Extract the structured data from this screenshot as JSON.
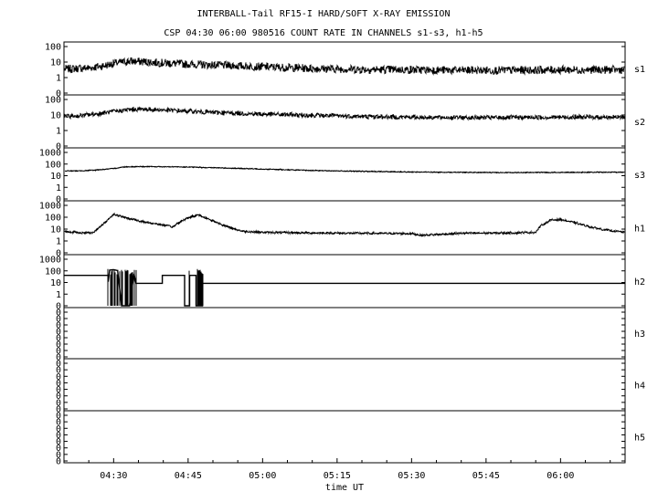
{
  "title": "INTERBALL-Tail RF15-I HARD/SOFT X-RAY EMISSION",
  "subtitle": "CSP 04:30 06:00 980516  COUNT RATE IN CHANNELS s1-s3, h1-h5",
  "chart_data": {
    "type": "line",
    "x_axis": {
      "label": "time UT",
      "range_minutes": [
        260,
        373
      ],
      "ticks": [
        {
          "label": "04:30",
          "minutes": 270
        },
        {
          "label": "04:45",
          "minutes": 285
        },
        {
          "label": "05:00",
          "minutes": 300
        },
        {
          "label": "05:15",
          "minutes": 315
        },
        {
          "label": "05:30",
          "minutes": 330
        },
        {
          "label": "05:45",
          "minutes": 345
        },
        {
          "label": "06:00",
          "minutes": 360
        }
      ]
    },
    "y_scale": "log",
    "grid": false,
    "series": [
      {
        "name": "s1",
        "ytick_labels": [
          "100",
          "10",
          "1",
          "0"
        ],
        "ylim": [
          0.3,
          100
        ],
        "x": [
          260,
          265,
          268,
          270,
          273,
          276,
          280,
          285,
          290,
          295,
          300,
          310,
          320,
          330,
          340,
          350,
          360,
          373
        ],
        "values": [
          6,
          7,
          9,
          12,
          16,
          15,
          13,
          11,
          10,
          9,
          8,
          6.5,
          5.8,
          5.5,
          5.2,
          5.2,
          5.5,
          5.5
        ]
      },
      {
        "name": "s2",
        "ytick_labels": [
          "100",
          "10",
          "1",
          "0"
        ],
        "ylim": [
          0.3,
          100
        ],
        "x": [
          260,
          263,
          267,
          270,
          273,
          276,
          280,
          285,
          290,
          295,
          300,
          310,
          320,
          330,
          340,
          350,
          360,
          373
        ],
        "values": [
          12,
          13,
          17,
          22,
          28,
          30,
          27,
          23,
          20,
          18,
          16,
          14,
          12,
          11,
          10.5,
          10.5,
          11,
          11
        ]
      },
      {
        "name": "s3",
        "ytick_labels": [
          "1000",
          "100",
          "10",
          "1",
          "0"
        ],
        "ylim": [
          0.3,
          1000
        ],
        "x": [
          260,
          263,
          266,
          270,
          272,
          275,
          280,
          285,
          290,
          300,
          310,
          320,
          330,
          340,
          350,
          360,
          373
        ],
        "values": [
          40,
          40,
          45,
          60,
          80,
          85,
          83,
          78,
          70,
          55,
          43,
          37,
          33,
          31,
          30,
          31,
          32
        ]
      },
      {
        "name": "h1",
        "ytick_labels": [
          "1000",
          "100",
          "10",
          "1",
          "0"
        ],
        "ylim": [
          0.3,
          1000
        ],
        "x": [
          260,
          262,
          264,
          266,
          267.5,
          270,
          272,
          274,
          276,
          279,
          282,
          283,
          285,
          287,
          289,
          291,
          293,
          296,
          300,
          310,
          320,
          330,
          332,
          340,
          350,
          355,
          356,
          358,
          360,
          363,
          366,
          369,
          373
        ],
        "values": [
          12,
          10,
          9,
          10,
          30,
          220,
          130,
          90,
          60,
          40,
          25,
          50,
          120,
          200,
          100,
          50,
          25,
          12,
          10,
          9,
          8.5,
          8,
          6,
          8.5,
          9,
          10,
          30,
          80,
          90,
          50,
          25,
          15,
          10
        ]
      },
      {
        "name": "h2",
        "ytick_labels": [
          "1000",
          "100",
          "10",
          "1",
          "0"
        ],
        "ylim": [
          0.3,
          1000
        ],
        "x": [
          260,
          268.9,
          268.9,
          269.2,
          270,
          270.8,
          271.6,
          272.4,
          273.2,
          274.1,
          274.5,
          279.8,
          279.8,
          284.3,
          284.3,
          285.3,
          285.3,
          286.6,
          286.6,
          287.9,
          287.9,
          373
        ],
        "values": [
          60,
          60,
          20,
          150,
          160,
          140,
          0.3,
          0.3,
          0.3,
          80,
          15,
          15,
          60,
          60,
          0.3,
          0.3,
          60,
          60,
          0.3,
          0.3,
          15,
          15
        ]
      },
      {
        "name": "h3",
        "ytick_labels": [
          "0",
          "0",
          "0",
          "0",
          "0",
          "0",
          "0",
          "0"
        ],
        "values": []
      },
      {
        "name": "h4",
        "ytick_labels": [
          "0",
          "0",
          "0",
          "0",
          "0",
          "0",
          "0",
          "0"
        ],
        "values": []
      },
      {
        "name": "h5",
        "ytick_labels": [
          "0",
          "0",
          "0",
          "0",
          "0",
          "0",
          "0",
          "0"
        ],
        "values": []
      }
    ]
  }
}
